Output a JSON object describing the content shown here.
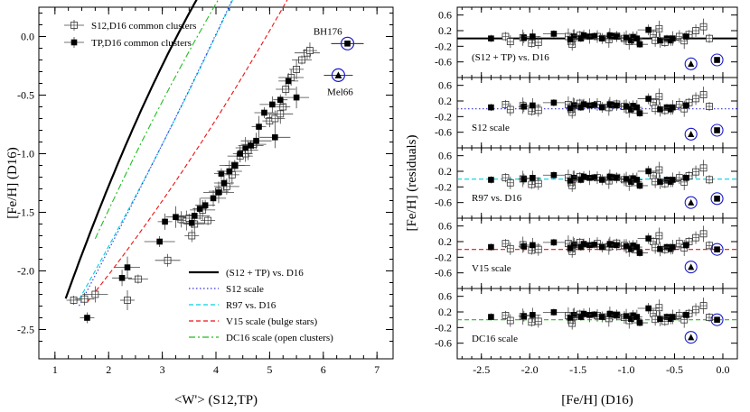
{
  "chart_data": [
    {
      "type": "scatter",
      "xlabel": "<W'> (S12,TP)",
      "ylabel": "[Fe/H] (D16)",
      "xlim": [
        0.7,
        7.3
      ],
      "ylim": [
        0.25,
        -2.75
      ],
      "xticks": [
        "1",
        "2",
        "3",
        "4",
        "5",
        "6",
        "7"
      ],
      "yticks": [
        "0.0",
        "-0.5",
        "-1.0",
        "-1.5",
        "-2.0",
        "-2.5"
      ],
      "legend_points": [
        {
          "name": "S12,D16 common clusters",
          "marker": "open-square"
        },
        {
          "name": "TP,D16 common clusters",
          "marker": "filled-square"
        }
      ],
      "legend_lines": [
        {
          "name": "(S12 + TP) vs. D16",
          "color": "#000000",
          "style": "solid"
        },
        {
          "name": "S12 scale",
          "color": "#3333dd",
          "style": "dotted"
        },
        {
          "name": "R97 vs. D16",
          "color": "#00d0e8",
          "style": "dashed"
        },
        {
          "name": "V15 scale (bulge stars)",
          "color": "#ee1111",
          "style": "dashed"
        },
        {
          "name": "DC16 scale (open clusters)",
          "color": "#22bb22",
          "style": "dashdot"
        }
      ],
      "annotations": [
        {
          "text": "BH176",
          "x": 6.45,
          "y": -0.06
        },
        {
          "text": "Mel66",
          "x": 6.28,
          "y": -0.33
        }
      ],
      "series": [
        {
          "name": "S12,D16 common clusters",
          "marker": "open-square",
          "x": [
            1.35,
            1.55,
            1.75,
            2.35,
            2.55,
            3.1,
            3.35,
            3.45,
            3.5,
            3.55,
            3.6,
            3.75,
            3.85,
            4.05,
            4.2,
            4.3,
            4.35,
            4.45,
            4.55,
            4.6,
            4.7,
            5.0,
            5.1,
            5.2,
            5.25,
            5.3,
            5.4,
            5.5,
            5.6,
            5.7,
            5.75
          ],
          "y": [
            -2.25,
            -2.24,
            -2.2,
            -2.25,
            -2.07,
            -1.91,
            -1.56,
            -1.57,
            -1.55,
            -1.7,
            -1.6,
            -1.48,
            -1.57,
            -1.32,
            -1.28,
            -1.18,
            -1.1,
            -1.02,
            -1.0,
            -0.97,
            -0.92,
            -0.72,
            -0.7,
            -0.66,
            -0.6,
            -0.45,
            -0.35,
            -0.28,
            -0.2,
            -0.14,
            -0.12
          ]
        },
        {
          "name": "TP,D16 common clusters",
          "marker": "filled-square",
          "x": [
            1.6,
            2.25,
            2.35,
            2.95,
            3.05,
            3.25,
            3.55,
            3.6,
            3.7,
            3.8,
            3.95,
            4.05,
            4.1,
            4.15,
            4.25,
            4.35,
            4.45,
            4.55,
            4.65,
            4.75,
            4.8,
            4.9,
            5.05,
            5.1,
            5.2,
            5.35,
            5.5
          ],
          "y": [
            -2.4,
            -2.06,
            -1.97,
            -1.75,
            -1.58,
            -1.54,
            -1.59,
            -1.53,
            -1.47,
            -1.44,
            -1.38,
            -1.33,
            -1.17,
            -1.25,
            -1.15,
            -1.1,
            -1.0,
            -0.95,
            -0.93,
            -0.89,
            -0.77,
            -0.65,
            -0.58,
            -0.86,
            -0.54,
            -0.38,
            -0.52
          ]
        },
        {
          "name": "BH176",
          "marker": "filled-square-circled",
          "x": [
            6.45
          ],
          "y": [
            -0.06
          ]
        },
        {
          "name": "Mel66",
          "marker": "filled-triangle-circled",
          "x": [
            6.28
          ],
          "y": [
            -0.33
          ]
        }
      ]
    },
    {
      "type": "scatter",
      "layout": "5 stacked panels sharing x axis",
      "xlabel": "[Fe/H] (D16)",
      "ylabel": "[Fe/H] (residuals)",
      "xlim": [
        -2.75,
        0.15
      ],
      "ylim": [
        -1.0,
        0.8
      ],
      "xticks": [
        "-2.5",
        "-2.0",
        "-1.5",
        "-1.0",
        "-0.5",
        "0.0"
      ],
      "yticks": [
        "0.6",
        "0.2",
        "-0.2",
        "-0.6"
      ],
      "panels": [
        {
          "label": "(S12 + TP) vs. D16",
          "line_color": "#000000",
          "line_style": "solid",
          "offset": 0.0
        },
        {
          "label": "S12 scale",
          "line_color": "#3333dd",
          "line_style": "dotted",
          "offset": 0.06
        },
        {
          "label": "R97 vs. D16",
          "line_color": "#00d0e8",
          "line_style": "dashed",
          "offset": -0.03
        },
        {
          "label": "V15 scale",
          "line_color": "#ee1111",
          "line_style": "dashed",
          "offset": 0.1
        },
        {
          "label": "DC16 scale",
          "line_color": "#22bb22",
          "line_style": "dashed",
          "offset": 0.12
        }
      ],
      "residuals": {
        "open_x": [
          -2.25,
          -2.2,
          -2.07,
          -1.98,
          -1.91,
          -1.6,
          -1.57,
          -1.56,
          -1.55,
          -1.48,
          -1.3,
          -1.18,
          -1.1,
          -1.02,
          -0.97,
          -0.72,
          -0.7,
          -0.66,
          -0.6,
          -0.45,
          -0.4,
          -0.35,
          -0.28,
          -0.2,
          -0.14
        ],
        "open_y": [
          0.05,
          -0.08,
          0.02,
          -0.12,
          -0.1,
          0.05,
          -0.08,
          -0.15,
          0.02,
          0.08,
          0.05,
          -0.03,
          0.06,
          0.0,
          -0.08,
          0.1,
          -0.05,
          0.25,
          -0.1,
          0.05,
          -0.06,
          0.1,
          0.2,
          0.3,
          0.0
        ],
        "filled_x": [
          -2.4,
          -2.06,
          -1.97,
          -1.75,
          -1.58,
          -1.54,
          -1.47,
          -1.44,
          -1.38,
          -1.33,
          -1.25,
          -1.17,
          -1.15,
          -1.1,
          -1.0,
          -0.95,
          -0.93,
          -0.89,
          -0.86,
          -0.77,
          -0.65,
          -0.58,
          -0.54,
          -0.52,
          -0.38
        ],
        "filled_y": [
          0.0,
          0.02,
          0.05,
          0.12,
          -0.02,
          0.05,
          0.0,
          0.08,
          0.05,
          0.06,
          0.0,
          0.08,
          0.06,
          0.05,
          0.02,
          -0.05,
          0.04,
          0.0,
          -0.15,
          0.22,
          -0.05,
          0.0,
          -0.05,
          0.0,
          0.05
        ],
        "special": [
          {
            "name": "Mel66",
            "marker": "filled-triangle-circled",
            "x": -0.33,
            "y": -0.65
          },
          {
            "name": "BH176",
            "marker": "filled-square-circled",
            "x": -0.06,
            "y": -0.55
          }
        ]
      }
    }
  ]
}
